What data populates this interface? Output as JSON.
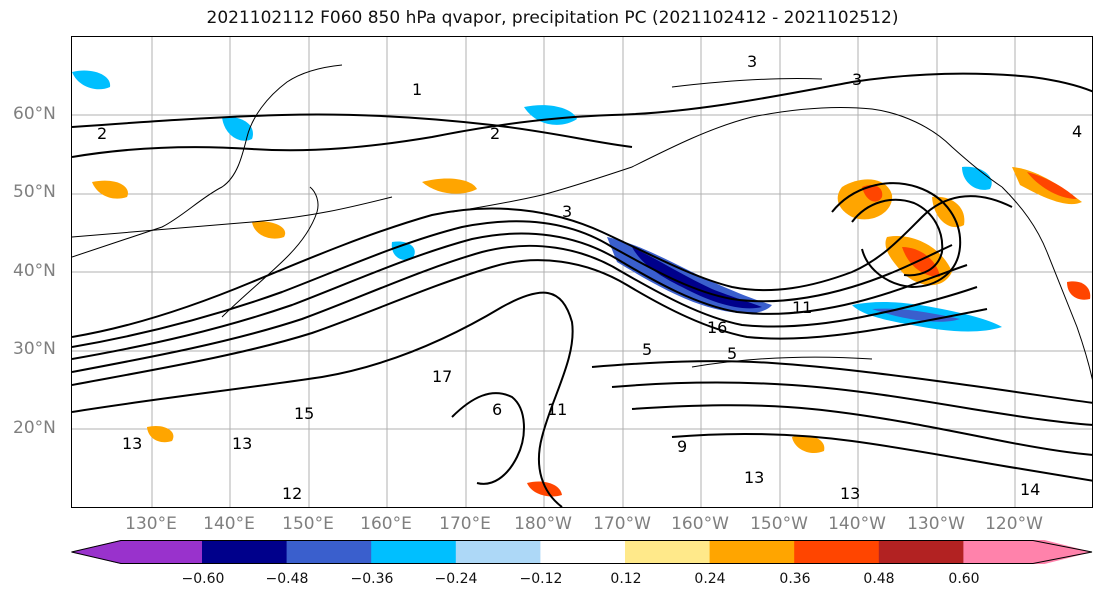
{
  "title": "2021102112 F060 850 hPa qvapor, precipitation PC (2021102412 - 2021102512)",
  "lat_labels": [
    "60°N",
    "50°N",
    "40°N",
    "30°N",
    "20°N"
  ],
  "lon_labels": [
    "130°E",
    "140°E",
    "150°E",
    "160°E",
    "170°E",
    "180°W",
    "170°W",
    "160°W",
    "150°W",
    "140°W",
    "130°W",
    "120°W"
  ],
  "contour_labels": [
    "1",
    "2",
    "2",
    "3",
    "3",
    "3",
    "4",
    "5",
    "5",
    "6",
    "9",
    "11",
    "11",
    "12",
    "13",
    "13",
    "13",
    "13",
    "14",
    "15",
    "16",
    "17"
  ],
  "colorbar": {
    "ticks": [
      "−0.60",
      "−0.48",
      "−0.36",
      "−0.24",
      "−0.12",
      "0.12",
      "0.24",
      "0.36",
      "0.48",
      "0.60"
    ],
    "colors": [
      "#9932cc",
      "#00008b",
      "#3a5fcd",
      "#00bfff",
      "#add8f7",
      "#ffffff",
      "#ffe98a",
      "#ffa500",
      "#ff4500",
      "#b22222",
      "#ff82ab"
    ]
  }
}
